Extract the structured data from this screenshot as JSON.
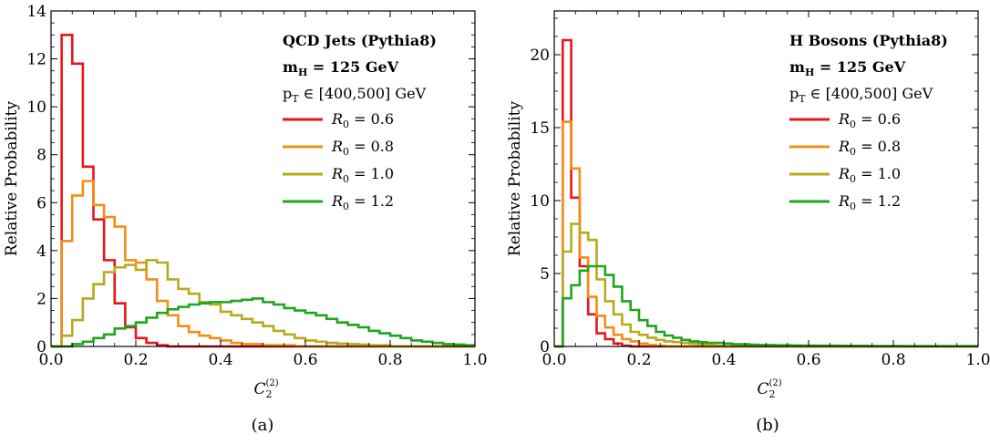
{
  "chart_data": [
    {
      "type": "line",
      "step": true,
      "caption": "(a)",
      "xlabel": "C",
      "xlabel_sub": "2",
      "xlabel_sup": "(2)",
      "ylabel": "Relative Probability",
      "xlim": [
        0,
        1
      ],
      "ylim": [
        0,
        14
      ],
      "xticks": [
        0.0,
        0.2,
        0.4,
        0.6,
        0.8,
        1.0
      ],
      "xtick_labels": [
        "0.0",
        "0.2",
        "0.4",
        "0.6",
        "0.8",
        "1.0"
      ],
      "yticks": [
        0,
        2,
        4,
        6,
        8,
        10,
        12,
        14
      ],
      "ytick_labels": [
        "0",
        "2",
        "4",
        "6",
        "8",
        "10",
        "12",
        "14"
      ],
      "legend_position": "top-right",
      "legend_header": [
        "QCD Jets (Pythia8)",
        "m",
        "H",
        " = 125 GeV",
        "p",
        "T",
        " ∈ [400,500] GeV"
      ],
      "bin_width": 0.025,
      "series": [
        {
          "name": "R",
          "name_sub": "0",
          "name_rest": " = 0.6",
          "color": "#e8151b",
          "values": [
            0,
            13.0,
            11.8,
            7.5,
            5.3,
            3.6,
            1.8,
            0.8,
            0.35,
            0.15,
            0.05,
            0,
            0,
            0,
            0,
            0,
            0,
            0,
            0,
            0,
            0,
            0,
            0,
            0,
            0,
            0,
            0,
            0,
            0,
            0,
            0,
            0,
            0,
            0,
            0,
            0,
            0,
            0,
            0,
            0
          ]
        },
        {
          "name": "R",
          "name_sub": "0",
          "name_rest": " = 0.8",
          "color": "#f48c18",
          "values": [
            0,
            4.4,
            6.3,
            6.9,
            5.9,
            5.4,
            5.0,
            3.6,
            3.5,
            2.8,
            1.9,
            1.3,
            0.85,
            0.6,
            0.45,
            0.35,
            0.25,
            0.15,
            0.1,
            0.1,
            0.05,
            0.05,
            0.05,
            0,
            0,
            0,
            0,
            0,
            0,
            0,
            0,
            0,
            0,
            0,
            0,
            0,
            0,
            0,
            0,
            0
          ]
        },
        {
          "name": "R",
          "name_sub": "0",
          "name_rest": " = 1.0",
          "color": "#b8aa1c",
          "values": [
            0,
            0.45,
            1.1,
            2.0,
            2.6,
            3.1,
            3.3,
            3.4,
            3.2,
            3.6,
            3.5,
            2.8,
            2.4,
            2.2,
            1.85,
            1.75,
            1.45,
            1.3,
            1.15,
            1.0,
            0.85,
            0.65,
            0.5,
            0.35,
            0.25,
            0.2,
            0.15,
            0.12,
            0.1,
            0.08,
            0.05,
            0.05,
            0,
            0,
            0,
            0,
            0,
            0,
            0,
            0
          ]
        },
        {
          "name": "R",
          "name_sub": "0",
          "name_rest": " = 1.2",
          "color": "#1fa51f",
          "values": [
            0,
            0,
            0.1,
            0.2,
            0.35,
            0.5,
            0.75,
            0.85,
            1.0,
            1.2,
            1.4,
            1.55,
            1.65,
            1.75,
            1.8,
            1.85,
            1.85,
            1.9,
            1.95,
            2.0,
            1.85,
            1.75,
            1.6,
            1.5,
            1.4,
            1.3,
            1.15,
            1.0,
            0.9,
            0.8,
            0.65,
            0.55,
            0.45,
            0.35,
            0.25,
            0.2,
            0.15,
            0.1,
            0.08,
            0.05
          ]
        }
      ]
    },
    {
      "type": "line",
      "step": true,
      "caption": "(b)",
      "xlabel": "C",
      "xlabel_sub": "2",
      "xlabel_sup": "(2)",
      "ylabel": "Relative Probability",
      "xlim": [
        0,
        1
      ],
      "ylim": [
        0,
        23
      ],
      "xticks": [
        0.0,
        0.2,
        0.4,
        0.6,
        0.8,
        1.0
      ],
      "xtick_labels": [
        "0.0",
        "0.2",
        "0.4",
        "0.6",
        "0.8",
        "1.0"
      ],
      "yticks": [
        0,
        5,
        10,
        15,
        20
      ],
      "ytick_labels": [
        "0",
        "5",
        "10",
        "15",
        "20"
      ],
      "legend_position": "top-right",
      "legend_header": [
        "H Bosons (Pythia8)",
        "m",
        "H",
        " = 125 GeV",
        "p",
        "T",
        " ∈ [400,500] GeV"
      ],
      "bin_width": 0.02,
      "series": [
        {
          "name": "R",
          "name_sub": "0",
          "name_rest": " = 0.6",
          "color": "#e8151b",
          "values": [
            0,
            21.0,
            10.2,
            5.5,
            2.2,
            0.9,
            0.5,
            0.2,
            0.05,
            0,
            0,
            0,
            0,
            0,
            0,
            0,
            0,
            0,
            0,
            0,
            0,
            0,
            0,
            0,
            0,
            0,
            0,
            0,
            0,
            0,
            0,
            0,
            0,
            0,
            0,
            0,
            0,
            0,
            0,
            0,
            0,
            0,
            0,
            0,
            0,
            0,
            0,
            0,
            0,
            0
          ]
        },
        {
          "name": "R",
          "name_sub": "0",
          "name_rest": " = 0.8",
          "color": "#f48c18",
          "values": [
            0,
            15.4,
            12.2,
            6.1,
            3.4,
            2.1,
            1.3,
            0.8,
            0.5,
            0.35,
            0.2,
            0.1,
            0.05,
            0,
            0,
            0,
            0,
            0,
            0,
            0,
            0,
            0,
            0,
            0,
            0,
            0,
            0,
            0,
            0,
            0,
            0,
            0,
            0,
            0,
            0,
            0,
            0,
            0,
            0,
            0,
            0,
            0,
            0,
            0,
            0,
            0,
            0,
            0,
            0,
            0
          ]
        },
        {
          "name": "R",
          "name_sub": "0",
          "name_rest": " = 1.0",
          "color": "#b8aa1c",
          "values": [
            0,
            6.5,
            8.4,
            7.8,
            7.3,
            4.6,
            3.1,
            2.2,
            1.5,
            1.0,
            0.8,
            0.6,
            0.45,
            0.35,
            0.3,
            0.25,
            0.2,
            0.15,
            0.1,
            0.05,
            0,
            0,
            0,
            0,
            0,
            0,
            0,
            0,
            0,
            0,
            0,
            0,
            0,
            0,
            0,
            0,
            0,
            0,
            0,
            0,
            0,
            0,
            0,
            0,
            0,
            0,
            0,
            0,
            0,
            0
          ]
        },
        {
          "name": "R",
          "name_sub": "0",
          "name_rest": " = 1.2",
          "color": "#1fa51f",
          "values": [
            0,
            3.3,
            4.2,
            5.2,
            5.5,
            5.5,
            4.9,
            4.1,
            3.1,
            2.5,
            1.8,
            1.4,
            1.0,
            0.75,
            0.6,
            0.45,
            0.35,
            0.3,
            0.25,
            0.25,
            0.2,
            0.15,
            0.15,
            0.12,
            0.1,
            0.1,
            0.08,
            0.08,
            0.07,
            0.06,
            0.06,
            0.05,
            0.05,
            0.05,
            0.04,
            0.04,
            0.04,
            0.03,
            0.03,
            0.03,
            0.03,
            0.02,
            0.02,
            0.02,
            0.02,
            0.02,
            0.02,
            0.02,
            0.02,
            0.02
          ]
        }
      ]
    }
  ]
}
